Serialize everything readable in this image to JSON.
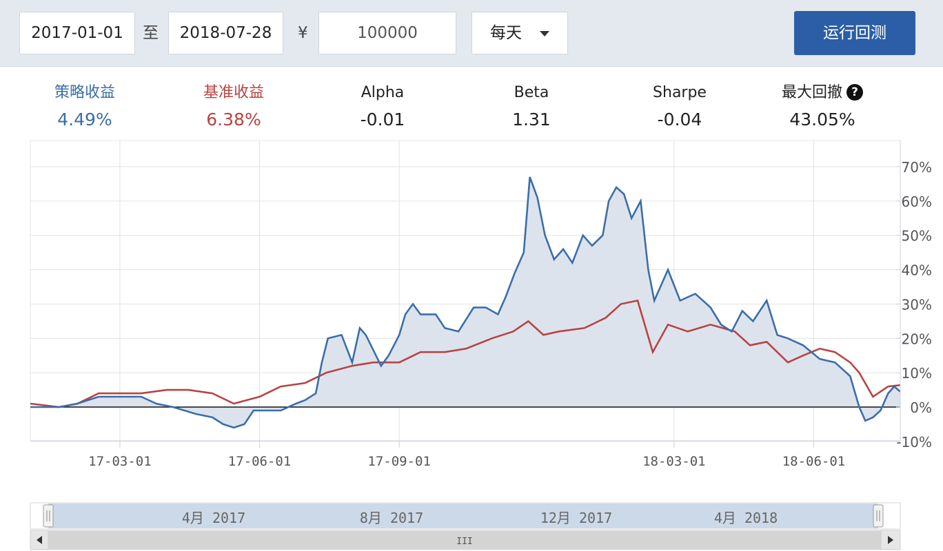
{
  "toolbar": {
    "start_date": "2017-01-01",
    "to_label": "至",
    "end_date": "2018-07-28",
    "currency_symbol": "¥",
    "capital": "100000",
    "frequency": "每天",
    "run_label": "运行回测"
  },
  "stats": [
    {
      "label": "策略收益",
      "value": "4.49%",
      "color": "#3a6ea9"
    },
    {
      "label": "基准收益",
      "value": "6.38%",
      "color": "#b84342"
    },
    {
      "label": "Alpha",
      "value": "-0.01",
      "color": "#222222"
    },
    {
      "label": "Beta",
      "value": "1.31",
      "color": "#222222"
    },
    {
      "label": "Sharpe",
      "value": "-0.04",
      "color": "#222222"
    },
    {
      "label": "最大回撤",
      "value": "43.05%",
      "color": "#222222"
    }
  ],
  "help_icon": "question-circle-icon",
  "navigator": {
    "labels": [
      "4月 2017",
      "8月 2017",
      "12月 2017",
      "4月 2018"
    ],
    "scroll_grip": "III"
  },
  "chart_data": {
    "type": "line",
    "x_tick_labels": [
      "17-03-01",
      "17-06-01",
      "17-09-01",
      "18-03-01",
      "18-06-01"
    ],
    "y_tick_labels": [
      "70%",
      "60%",
      "50%",
      "40%",
      "30%",
      "20%",
      "10%",
      "0%",
      "-10%"
    ],
    "ylim": [
      -10,
      70
    ],
    "xlim": [
      "2017-01-01",
      "2018-07-28"
    ],
    "grid": true,
    "colors": {
      "strategy": "#3a6ea9",
      "benchmark": "#b84342",
      "area": "#dde3ed"
    },
    "series": [
      {
        "key": "strategy",
        "points": [
          [
            "2017-01-01",
            0
          ],
          [
            "2017-01-20",
            0
          ],
          [
            "2017-02-01",
            1
          ],
          [
            "2017-02-15",
            3
          ],
          [
            "2017-03-01",
            3
          ],
          [
            "2017-03-15",
            3
          ],
          [
            "2017-03-25",
            1
          ],
          [
            "2017-04-05",
            0
          ],
          [
            "2017-04-20",
            -2
          ],
          [
            "2017-05-01",
            -3
          ],
          [
            "2017-05-08",
            -5
          ],
          [
            "2017-05-15",
            -6
          ],
          [
            "2017-05-22",
            -5
          ],
          [
            "2017-05-28",
            -1
          ],
          [
            "2017-06-05",
            -1
          ],
          [
            "2017-06-15",
            -1
          ],
          [
            "2017-06-25",
            1
          ],
          [
            "2017-07-01",
            2
          ],
          [
            "2017-07-08",
            4
          ],
          [
            "2017-07-12",
            13
          ],
          [
            "2017-07-16",
            20
          ],
          [
            "2017-07-25",
            21
          ],
          [
            "2017-08-01",
            13
          ],
          [
            "2017-08-06",
            23
          ],
          [
            "2017-08-10",
            21
          ],
          [
            "2017-08-20",
            12
          ],
          [
            "2017-08-25",
            15
          ],
          [
            "2017-09-01",
            21
          ],
          [
            "2017-09-05",
            27
          ],
          [
            "2017-09-10",
            30
          ],
          [
            "2017-09-15",
            27
          ],
          [
            "2017-09-25",
            27
          ],
          [
            "2017-10-01",
            23
          ],
          [
            "2017-10-10",
            22
          ],
          [
            "2017-10-20",
            29
          ],
          [
            "2017-10-28",
            29
          ],
          [
            "2017-11-05",
            27
          ],
          [
            "2017-11-10",
            32
          ],
          [
            "2017-11-16",
            39
          ],
          [
            "2017-11-22",
            45
          ],
          [
            "2017-11-26",
            67
          ],
          [
            "2017-12-01",
            61
          ],
          [
            "2017-12-06",
            50
          ],
          [
            "2017-12-12",
            43
          ],
          [
            "2017-12-18",
            46
          ],
          [
            "2017-12-24",
            42
          ],
          [
            "2017-12-31",
            50
          ],
          [
            "2018-01-06",
            47
          ],
          [
            "2018-01-13",
            50
          ],
          [
            "2018-01-17",
            60
          ],
          [
            "2018-01-22",
            64
          ],
          [
            "2018-01-27",
            62
          ],
          [
            "2018-02-01",
            55
          ],
          [
            "2018-02-07",
            60
          ],
          [
            "2018-02-12",
            40
          ],
          [
            "2018-02-16",
            31
          ],
          [
            "2018-02-25",
            40
          ],
          [
            "2018-03-05",
            31
          ],
          [
            "2018-03-15",
            33
          ],
          [
            "2018-03-25",
            29
          ],
          [
            "2018-04-01",
            24
          ],
          [
            "2018-04-08",
            22
          ],
          [
            "2018-04-15",
            28
          ],
          [
            "2018-04-22",
            25
          ],
          [
            "2018-05-01",
            31
          ],
          [
            "2018-05-08",
            21
          ],
          [
            "2018-05-15",
            20
          ],
          [
            "2018-05-25",
            18
          ],
          [
            "2018-06-05",
            14
          ],
          [
            "2018-06-15",
            13
          ],
          [
            "2018-06-25",
            9
          ],
          [
            "2018-07-01",
            0
          ],
          [
            "2018-07-05",
            -4
          ],
          [
            "2018-07-10",
            -3
          ],
          [
            "2018-07-15",
            -1
          ],
          [
            "2018-07-20",
            4
          ],
          [
            "2018-07-24",
            6
          ],
          [
            "2018-07-28",
            4.49
          ]
        ]
      },
      {
        "key": "benchmark",
        "points": [
          [
            "2017-01-01",
            1
          ],
          [
            "2017-01-20",
            0
          ],
          [
            "2017-02-01",
            1
          ],
          [
            "2017-02-15",
            4
          ],
          [
            "2017-03-01",
            4
          ],
          [
            "2017-03-15",
            4
          ],
          [
            "2017-04-01",
            5
          ],
          [
            "2017-04-15",
            5
          ],
          [
            "2017-05-01",
            4
          ],
          [
            "2017-05-15",
            1
          ],
          [
            "2017-06-01",
            3
          ],
          [
            "2017-06-15",
            6
          ],
          [
            "2017-07-01",
            7
          ],
          [
            "2017-07-15",
            10
          ],
          [
            "2017-08-01",
            12
          ],
          [
            "2017-08-15",
            13
          ],
          [
            "2017-09-01",
            13
          ],
          [
            "2017-09-15",
            16
          ],
          [
            "2017-10-01",
            16
          ],
          [
            "2017-10-15",
            17
          ],
          [
            "2017-11-01",
            20
          ],
          [
            "2017-11-15",
            22
          ],
          [
            "2017-11-25",
            25
          ],
          [
            "2017-12-05",
            21
          ],
          [
            "2017-12-15",
            22
          ],
          [
            "2018-01-01",
            23
          ],
          [
            "2018-01-15",
            26
          ],
          [
            "2018-01-25",
            30
          ],
          [
            "2018-02-05",
            31
          ],
          [
            "2018-02-15",
            16
          ],
          [
            "2018-02-25",
            24
          ],
          [
            "2018-03-10",
            22
          ],
          [
            "2018-03-25",
            24
          ],
          [
            "2018-04-10",
            22
          ],
          [
            "2018-04-20",
            18
          ],
          [
            "2018-05-01",
            19
          ],
          [
            "2018-05-15",
            13
          ],
          [
            "2018-05-25",
            15
          ],
          [
            "2018-06-05",
            17
          ],
          [
            "2018-06-15",
            16
          ],
          [
            "2018-06-25",
            13
          ],
          [
            "2018-07-01",
            10
          ],
          [
            "2018-07-10",
            3
          ],
          [
            "2018-07-20",
            6
          ],
          [
            "2018-07-28",
            6.38
          ]
        ]
      }
    ]
  }
}
